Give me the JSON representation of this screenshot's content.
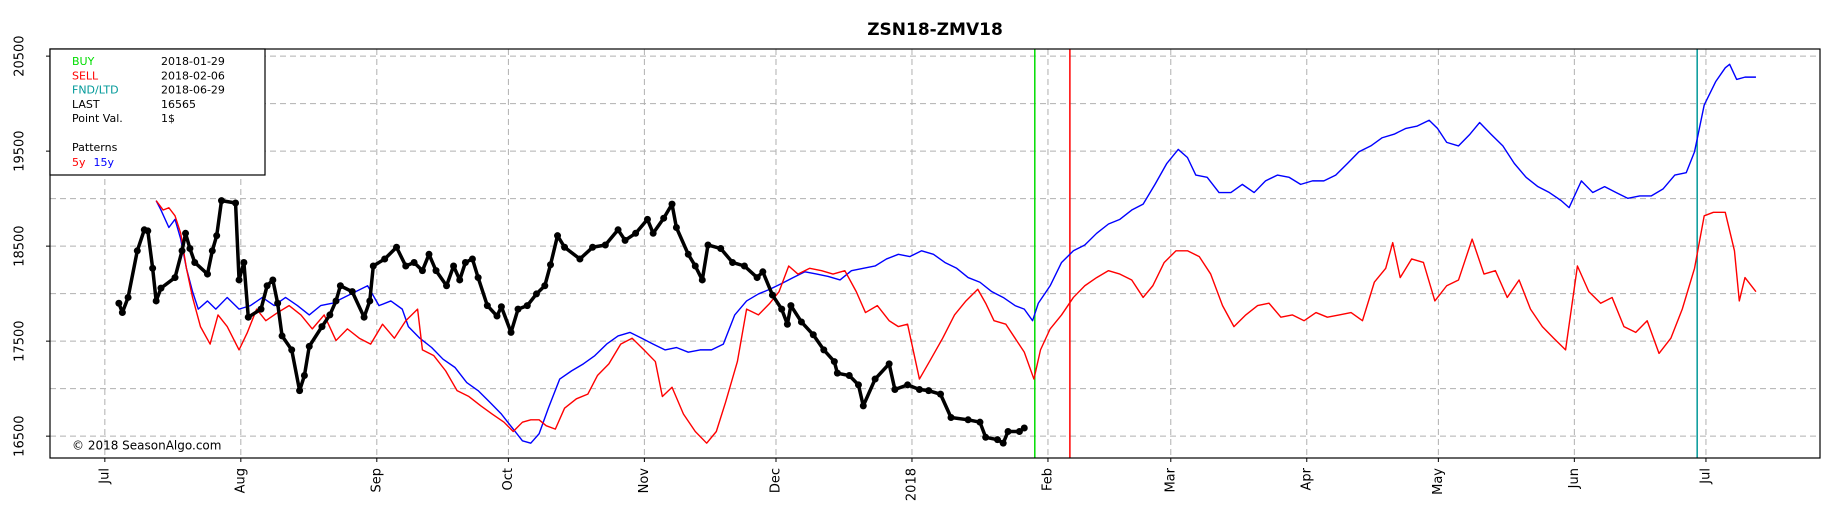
{
  "chart_data": {
    "type": "line",
    "title": "ZSN18-ZMV18",
    "copyright": "© 2018 SeasonAlgo.com",
    "xlim": [
      -12.5,
      391
    ],
    "xticks": [
      {
        "value": 0,
        "label": "Jul"
      },
      {
        "value": 31,
        "label": "Aug"
      },
      {
        "value": 62,
        "label": "Sep"
      },
      {
        "value": 92,
        "label": "Oct"
      },
      {
        "value": 123,
        "label": "Nov"
      },
      {
        "value": 153,
        "label": "Dec"
      },
      {
        "value": 184,
        "label": "2018"
      },
      {
        "value": 215,
        "label": "Feb"
      },
      {
        "value": 243,
        "label": "Mar"
      },
      {
        "value": 274,
        "label": "Apr"
      },
      {
        "value": 304,
        "label": "May"
      },
      {
        "value": 335,
        "label": "Jun"
      },
      {
        "value": 365,
        "label": "Jul"
      }
    ],
    "ylim": [
      16270,
      20575
    ],
    "yticks": [
      16500,
      17500,
      18500,
      19500,
      20500
    ],
    "yminor": [
      17000,
      18000,
      19000,
      20000
    ],
    "grid": true,
    "info": {
      "rows": [
        {
          "label": "BUY",
          "value": "2018-01-29",
          "color": "#00dd00"
        },
        {
          "label": "SELL",
          "value": "2018-02-06",
          "color": "#ff0000"
        },
        {
          "label": "FND/LTD",
          "value": "2018-06-29",
          "color": "#009999"
        },
        {
          "label": "LAST",
          "value": 16565,
          "color": "#000000"
        },
        {
          "label": "Point Val.",
          "value": "1$",
          "color": "#000000"
        }
      ],
      "legend_title": "Patterns"
    },
    "vlines": [
      {
        "x": 212,
        "color": "#00dd00"
      },
      {
        "x": 220,
        "color": "#ff0000"
      },
      {
        "x": 363,
        "color": "#009999"
      }
    ],
    "series": [
      {
        "color": "#000000",
        "markers": true,
        "x": [
          3.2,
          4.0,
          5.3,
          7.4,
          9.0,
          9.8,
          10.9,
          11.7,
          12.8,
          16.0,
          17.6,
          18.4,
          19.4,
          20.5,
          23.4,
          24.5,
          25.5,
          26.6,
          29.8,
          30.6,
          31.7,
          32.7,
          35.6,
          37.0,
          38.3,
          39.4,
          40.4,
          42.6,
          44.4,
          45.5,
          46.6,
          49.5,
          51.3,
          52.7,
          53.7,
          56.4,
          59.1,
          60.4,
          61.2,
          63.8,
          66.5,
          68.6,
          70.5,
          72.4,
          73.9,
          75.5,
          77.9,
          79.5,
          80.9,
          82.2,
          83.8,
          85.1,
          87.2,
          89.4,
          90.4,
          92.6,
          94.2,
          96.3,
          98.4,
          100.3,
          101.6,
          103.2,
          104.8,
          108.3,
          111.2,
          114.1,
          117.0,
          118.6,
          121.0,
          123.7,
          125.0,
          127.4,
          129.3,
          130.3,
          133.0,
          134.6,
          136.2,
          137.5,
          140.4,
          143.1,
          145.8,
          148.7,
          150.0,
          152.2,
          154.3,
          155.6,
          156.4,
          158.8,
          161.5,
          163.9,
          166.3,
          167.0,
          169.7,
          171.8,
          172.9,
          175.6,
          178.8,
          180.1,
          183.0,
          185.7,
          187.8,
          190.5,
          192.9,
          196.8,
          199.5,
          200.8,
          203.5,
          204.8,
          205.9,
          208.5,
          209.6
        ],
        "values": [
          17899,
          17801,
          17960,
          18451,
          18672,
          18660,
          18267,
          17923,
          18058,
          18169,
          18451,
          18635,
          18475,
          18328,
          18206,
          18451,
          18610,
          18979,
          18954,
          18144,
          18328,
          17752,
          17837,
          18083,
          18144,
          17899,
          17555,
          17408,
          16979,
          17138,
          17445,
          17653,
          17776,
          17923,
          18083,
          18021,
          17752,
          17923,
          18291,
          18365,
          18488,
          18291,
          18328,
          18242,
          18414,
          18242,
          18083,
          18291,
          18144,
          18328,
          18365,
          18169,
          17874,
          17764,
          17862,
          17592,
          17837,
          17874,
          17997,
          18083,
          18304,
          18610,
          18488,
          18365,
          18488,
          18512,
          18672,
          18561,
          18635,
          18782,
          18635,
          18794,
          18942,
          18696,
          18414,
          18291,
          18144,
          18512,
          18475,
          18328,
          18291,
          18169,
          18230,
          17985,
          17837,
          17678,
          17874,
          17702,
          17567,
          17408,
          17285,
          17163,
          17138,
          17040,
          16819,
          17101,
          17261,
          16991,
          17040,
          16991,
          16979,
          16942,
          16696,
          16672,
          16647,
          16488,
          16463,
          16426,
          16549,
          16549,
          16586
        ]
      },
      {
        "name": "5y",
        "color": "#ff0000",
        "x": [
          11.7,
          13.3,
          14.6,
          16.0,
          17.3,
          18.6,
          20.0,
          21.8,
          24.0,
          25.8,
          27.9,
          30.6,
          32.5,
          34.6,
          36.7,
          39.4,
          42.0,
          44.7,
          47.3,
          50.0,
          52.7,
          55.3,
          58.0,
          60.6,
          63.3,
          66.0,
          68.6,
          71.3,
          72.4,
          75.0,
          77.7,
          80.3,
          83.0,
          85.7,
          88.3,
          91.0,
          93.1,
          95.2,
          97.1,
          99.0,
          100.6,
          102.7,
          104.8,
          107.5,
          110.1,
          112.3,
          114.9,
          117.6,
          120.2,
          122.9,
          125.5,
          127.1,
          129.3,
          131.9,
          134.6,
          137.2,
          139.4,
          141.5,
          144.2,
          146.3,
          149.0,
          151.6,
          153.7,
          155.9,
          158.0,
          160.7,
          163.4,
          166.0,
          168.7,
          171.3,
          173.4,
          176.1,
          178.8,
          180.9,
          183.0,
          185.7,
          188.3,
          191.0,
          193.7,
          196.3,
          199.0,
          200.8,
          202.7,
          205.4,
          207.5,
          209.6,
          211.8,
          213.3,
          215.5,
          218.1,
          220.8,
          223.4,
          226.1,
          228.8,
          231.4,
          234.1,
          236.7,
          238.9,
          241.5,
          244.2,
          246.8,
          249.5,
          252.1,
          254.8,
          257.4,
          260.1,
          262.8,
          265.4,
          268.1,
          270.7,
          273.4,
          276.1,
          278.7,
          281.4,
          284.1,
          286.7,
          289.4,
          292.0,
          293.6,
          295.3,
          297.9,
          300.6,
          303.2,
          305.9,
          308.6,
          311.7,
          314.4,
          317.0,
          319.7,
          322.4,
          325.0,
          327.7,
          330.3,
          333.0,
          335.7,
          338.3,
          341.0,
          343.6,
          346.3,
          349.0,
          351.6,
          354.3,
          357.0,
          359.6,
          362.4,
          364.6,
          366.7,
          369.4,
          371.5,
          372.6,
          373.9,
          376.4
        ],
        "values": [
          18979,
          18880,
          18904,
          18819,
          18635,
          18267,
          17960,
          17653,
          17469,
          17776,
          17653,
          17408,
          17592,
          17837,
          17715,
          17801,
          17874,
          17776,
          17629,
          17776,
          17506,
          17629,
          17531,
          17469,
          17678,
          17531,
          17715,
          17837,
          17408,
          17347,
          17187,
          16979,
          16917,
          16819,
          16733,
          16647,
          16549,
          16647,
          16672,
          16672,
          16610,
          16574,
          16794,
          16893,
          16942,
          17138,
          17261,
          17469,
          17531,
          17408,
          17285,
          16917,
          17015,
          16733,
          16549,
          16426,
          16549,
          16856,
          17285,
          17837,
          17776,
          17899,
          18021,
          18291,
          18206,
          18267,
          18242,
          18206,
          18242,
          18021,
          17801,
          17874,
          17715,
          17653,
          17678,
          17101,
          17310,
          17531,
          17776,
          17923,
          18046,
          17899,
          17715,
          17678,
          17531,
          17384,
          17101,
          17408,
          17629,
          17776,
          17960,
          18083,
          18169,
          18242,
          18206,
          18144,
          17960,
          18083,
          18328,
          18451,
          18451,
          18390,
          18206,
          17874,
          17653,
          17776,
          17874,
          17899,
          17752,
          17776,
          17715,
          17801,
          17752,
          17776,
          17801,
          17715,
          18120,
          18267,
          18537,
          18169,
          18365,
          18328,
          17923,
          18083,
          18144,
          18574,
          18206,
          18242,
          17960,
          18144,
          17837,
          17653,
          17531,
          17408,
          18291,
          18021,
          17899,
          17960,
          17653,
          17592,
          17715,
          17371,
          17531,
          17837,
          18267,
          18819,
          18856,
          18856,
          18451,
          17923,
          18169,
          18021
        ]
      },
      {
        "name": "15y",
        "color": "#0000ff",
        "x": [
          11.7,
          12.8,
          14.6,
          16.0,
          17.3,
          18.6,
          20.0,
          21.3,
          23.4,
          25.3,
          27.9,
          30.6,
          33.2,
          35.9,
          38.6,
          41.2,
          43.9,
          46.6,
          49.2,
          51.9,
          54.5,
          57.2,
          59.9,
          62.5,
          65.2,
          67.8,
          69.2,
          71.8,
          74.5,
          77.1,
          79.8,
          82.5,
          85.1,
          87.8,
          90.4,
          93.1,
          95.2,
          97.1,
          99.0,
          101.1,
          103.7,
          106.4,
          109.1,
          111.7,
          114.4,
          117.0,
          119.7,
          122.4,
          125.0,
          127.7,
          130.3,
          133.0,
          135.7,
          138.3,
          141.0,
          143.6,
          146.3,
          149.0,
          151.6,
          154.3,
          156.9,
          159.6,
          162.3,
          164.9,
          167.6,
          170.2,
          172.9,
          175.6,
          178.2,
          180.9,
          183.5,
          186.2,
          188.9,
          191.5,
          194.2,
          196.8,
          199.5,
          202.2,
          204.8,
          207.5,
          209.6,
          211.5,
          212.8,
          215.5,
          218.1,
          220.8,
          223.4,
          226.1,
          228.8,
          231.4,
          234.1,
          236.7,
          239.4,
          242.1,
          244.7,
          246.8,
          248.7,
          251.3,
          254.0,
          256.7,
          259.3,
          262.0,
          264.6,
          267.3,
          270.0,
          272.6,
          275.3,
          277.9,
          280.6,
          283.3,
          285.9,
          288.6,
          291.2,
          293.9,
          296.6,
          299.2,
          301.9,
          303.8,
          305.9,
          308.6,
          311.2,
          313.4,
          316.0,
          318.7,
          321.3,
          324.0,
          326.7,
          329.3,
          332.0,
          333.8,
          336.6,
          339.2,
          341.9,
          344.5,
          347.2,
          349.9,
          352.5,
          355.2,
          357.9,
          360.5,
          362.4,
          364.6,
          367.2,
          369.4,
          370.4,
          372.0,
          373.9,
          376.4
        ],
        "values": [
          18979,
          18880,
          18696,
          18782,
          18574,
          18267,
          18021,
          17837,
          17923,
          17837,
          17960,
          17837,
          17874,
          17960,
          17874,
          17960,
          17874,
          17776,
          17874,
          17899,
          17960,
          18021,
          18083,
          17874,
          17923,
          17837,
          17653,
          17531,
          17433,
          17310,
          17224,
          17064,
          16979,
          16856,
          16733,
          16574,
          16451,
          16426,
          16525,
          16794,
          17101,
          17187,
          17261,
          17347,
          17469,
          17555,
          17592,
          17531,
          17469,
          17408,
          17433,
          17384,
          17408,
          17408,
          17469,
          17776,
          17923,
          17997,
          18046,
          18107,
          18169,
          18230,
          18206,
          18181,
          18144,
          18242,
          18267,
          18291,
          18365,
          18414,
          18390,
          18451,
          18414,
          18328,
          18267,
          18169,
          18120,
          18021,
          17960,
          17874,
          17837,
          17715,
          17899,
          18083,
          18328,
          18451,
          18512,
          18635,
          18733,
          18782,
          18880,
          18942,
          19150,
          19371,
          19518,
          19433,
          19248,
          19224,
          19064,
          19064,
          19150,
          19064,
          19187,
          19248,
          19224,
          19150,
          19187,
          19187,
          19248,
          19371,
          19494,
          19555,
          19641,
          19678,
          19739,
          19764,
          19825,
          19739,
          19592,
          19555,
          19678,
          19801,
          19678,
          19555,
          19371,
          19224,
          19126,
          19064,
          18979,
          18905,
          19187,
          19064,
          19126,
          19064,
          19003,
          19028,
          19028,
          19101,
          19248,
          19273,
          19494,
          19985,
          20230,
          20377,
          20414,
          20255,
          20279,
          20279
        ]
      }
    ]
  }
}
